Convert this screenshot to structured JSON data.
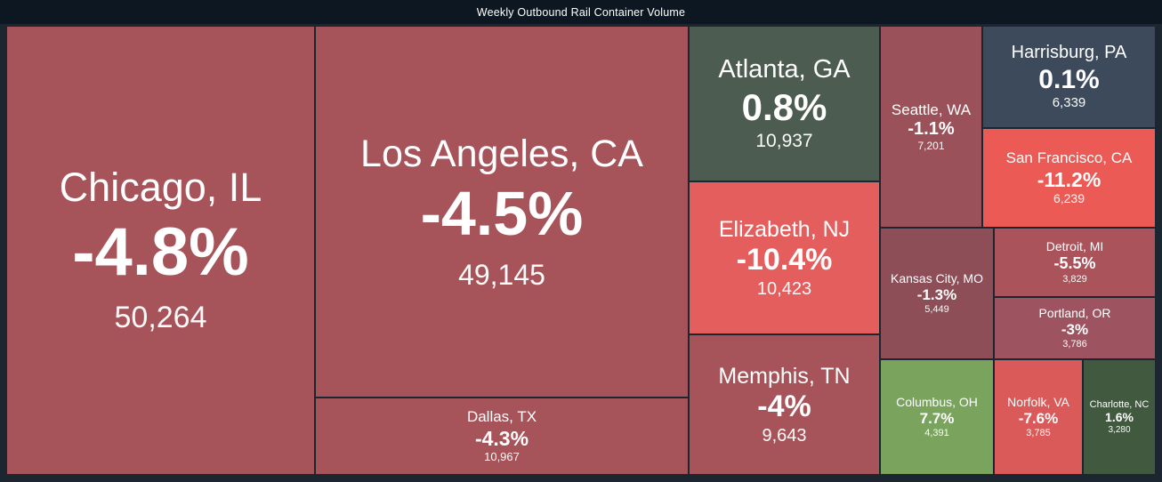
{
  "header": {
    "title": "Weekly Outbound Rail Container Volume"
  },
  "colors": {
    "page_background": "#1b2631",
    "titlebar_background": "#0d1722",
    "text": "#ffffff",
    "negative_muted": "#a6535a",
    "negative_strong": "#e35e5c",
    "positive_muted": "#4c5c51",
    "positive_strong": "#7aa35e",
    "neutral": "#3d4a5b"
  },
  "chart_data": {
    "type": "treemap",
    "title": "Weekly Outbound Rail Container Volume",
    "value_label": "weekly outbound rail containers",
    "tiles": [
      {
        "city": "Chicago, IL",
        "pct": "-4.8%",
        "pct_value": -4.8,
        "volume": "50,264",
        "volume_value": 50264,
        "color": "#a6535a"
      },
      {
        "city": "Los Angeles, CA",
        "pct": "-4.5%",
        "pct_value": -4.5,
        "volume": "49,145",
        "volume_value": 49145,
        "color": "#a6535a"
      },
      {
        "city": "Dallas, TX",
        "pct": "-4.3%",
        "pct_value": -4.3,
        "volume": "10,967",
        "volume_value": 10967,
        "color": "#a6535a"
      },
      {
        "city": "Atlanta, GA",
        "pct": "0.8%",
        "pct_value": 0.8,
        "volume": "10,937",
        "volume_value": 10937,
        "color": "#4c5c51"
      },
      {
        "city": "Elizabeth, NJ",
        "pct": "-10.4%",
        "pct_value": -10.4,
        "volume": "10,423",
        "volume_value": 10423,
        "color": "#e35e5c"
      },
      {
        "city": "Memphis, TN",
        "pct": "-4%",
        "pct_value": -4.0,
        "volume": "9,643",
        "volume_value": 9643,
        "color": "#a6535a"
      },
      {
        "city": "Seattle, WA",
        "pct": "-1.1%",
        "pct_value": -1.1,
        "volume": "7,201",
        "volume_value": 7201,
        "color": "#9b5159"
      },
      {
        "city": "Harrisburg, PA",
        "pct": "0.1%",
        "pct_value": 0.1,
        "volume": "6,339",
        "volume_value": 6339,
        "color": "#3d4a5b"
      },
      {
        "city": "San Francisco, CA",
        "pct": "-11.2%",
        "pct_value": -11.2,
        "volume": "6,239",
        "volume_value": 6239,
        "color": "#ec5a55"
      },
      {
        "city": "Kansas City, MO",
        "pct": "-1.3%",
        "pct_value": -1.3,
        "volume": "5,449",
        "volume_value": 5449,
        "color": "#8d4e58"
      },
      {
        "city": "Detroit, MI",
        "pct": "-5.5%",
        "pct_value": -5.5,
        "volume": "3,829",
        "volume_value": 3829,
        "color": "#aa535b"
      },
      {
        "city": "Portland, OR",
        "pct": "-3%",
        "pct_value": -3.0,
        "volume": "3,786",
        "volume_value": 3786,
        "color": "#9e5460"
      },
      {
        "city": "Columbus, OH",
        "pct": "7.7%",
        "pct_value": 7.7,
        "volume": "4,391",
        "volume_value": 4391,
        "color": "#7aa35e"
      },
      {
        "city": "Norfolk, VA",
        "pct": "-7.6%",
        "pct_value": -7.6,
        "volume": "3,785",
        "volume_value": 3785,
        "color": "#da5a5a"
      },
      {
        "city": "Charlotte, NC",
        "pct": "1.6%",
        "pct_value": 1.6,
        "volume": "3,280",
        "volume_value": 3280,
        "color": "#40593f"
      }
    ]
  }
}
